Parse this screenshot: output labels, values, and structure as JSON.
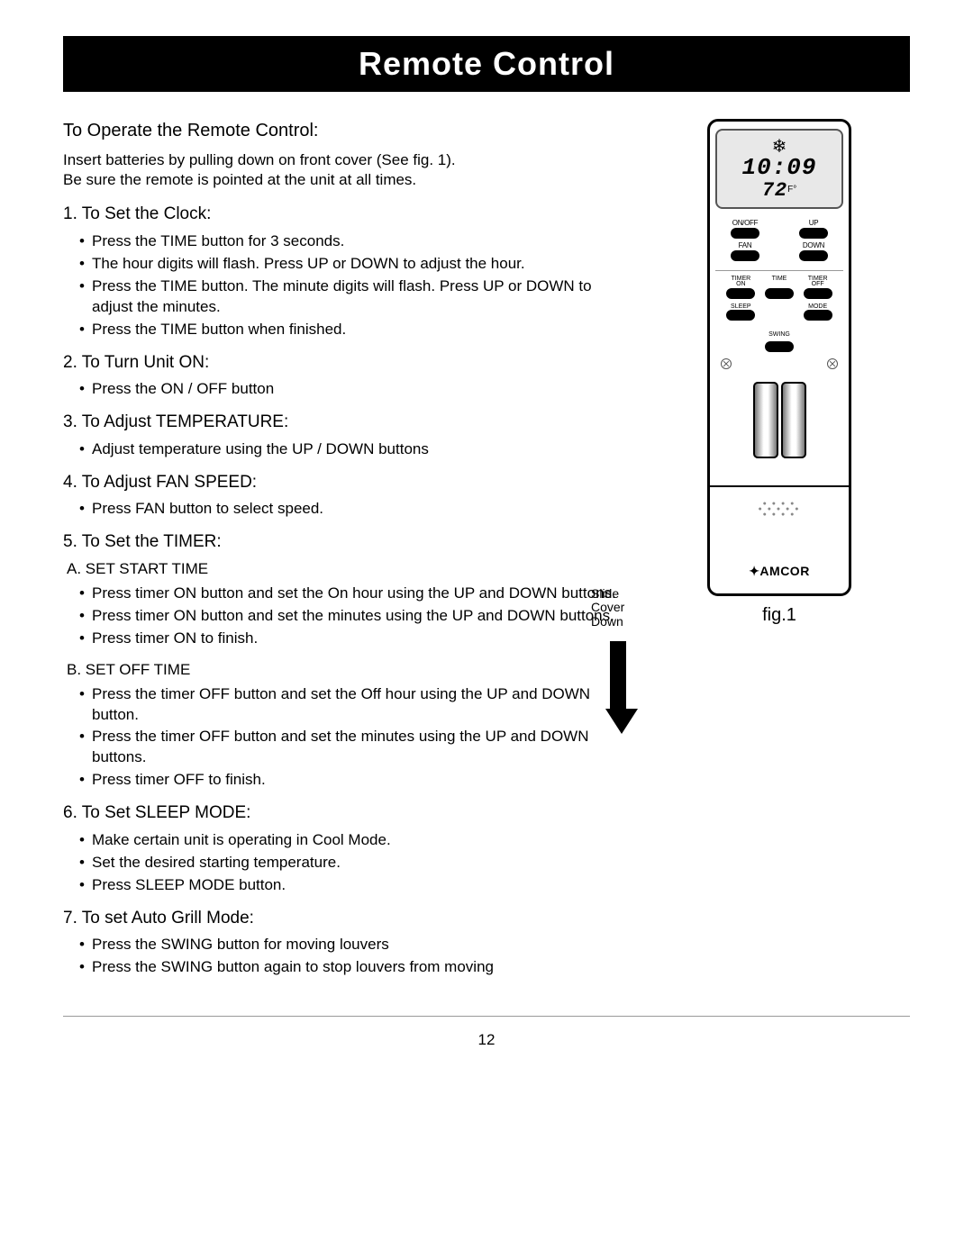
{
  "page_number": "12",
  "header": "Remote Control",
  "intro": {
    "heading": "To Operate the Remote Control:",
    "body_line1": "Insert batteries by pulling down on front cover (See fig. 1).",
    "body_line2": "Be sure the remote is pointed at the unit at all times."
  },
  "sections": {
    "clock": {
      "heading": "1.  To Set the Clock:",
      "items": [
        "Press the TIME button for 3 seconds.",
        "The hour digits will flash. Press UP or DOWN to adjust the hour.",
        "Press the TIME button. The minute digits will flash. Press UP or DOWN to adjust the minutes.",
        "Press the TIME button when finished."
      ]
    },
    "turn_on": {
      "heading": "2.  To Turn Unit ON:",
      "items": [
        "Press the ON / OFF button"
      ]
    },
    "temperature": {
      "heading": "3. To Adjust TEMPERATURE:",
      "items": [
        "Adjust temperature using the UP / DOWN buttons"
      ]
    },
    "fan": {
      "heading": "4. To Adjust FAN SPEED:",
      "items": [
        "Press FAN button to select speed."
      ]
    },
    "timer": {
      "heading": "5.  To Set the TIMER:",
      "sub_a_heading": "A. SET START TIME",
      "sub_a_items": [
        "Press timer ON button and set the On hour using the UP and DOWN buttons.",
        "Press timer ON button and set the minutes using the UP and DOWN buttons.",
        "Press timer ON to finish."
      ],
      "sub_b_heading": "B. SET OFF TIME",
      "sub_b_items": [
        "Press the timer OFF button and set the Off hour using the UP and DOWN button.",
        "Press the timer OFF button and set the minutes using the UP and DOWN buttons.",
        "Press timer OFF to finish."
      ]
    },
    "sleep": {
      "heading": "6. To Set SLEEP MODE:",
      "items": [
        "Make certain unit is operating in Cool Mode.",
        "Set the desired starting temperature.",
        "Press SLEEP MODE button."
      ]
    },
    "grill": {
      "heading": "7. To set Auto Grill Mode:",
      "items": [
        "Press the SWING button for moving louvers",
        "Press the SWING button again to stop louvers from moving"
      ]
    }
  },
  "remote": {
    "display": {
      "time": "10:09",
      "temp": "72",
      "temp_unit": "F°"
    },
    "buttons": {
      "onoff": "ON/OFF",
      "up": "UP",
      "fan": "FAN",
      "down": "DOWN",
      "timer_on_l1": "TIMER",
      "timer_on_l2": "ON",
      "time": "TIME",
      "timer_off_l1": "TIMER",
      "timer_off_l2": "OFF",
      "sleep": "SLEEP",
      "mode": "MODE",
      "swing": "SWING"
    },
    "brand": "AMCOR",
    "slide_l1": "Slide",
    "slide_l2": "Cover",
    "slide_l3": "Down",
    "fig_label": "fig.1"
  },
  "colors": {
    "header_bg": "#000000",
    "header_fg": "#ffffff",
    "text": "#000000",
    "lcd_bg": "#e8e8e8"
  }
}
